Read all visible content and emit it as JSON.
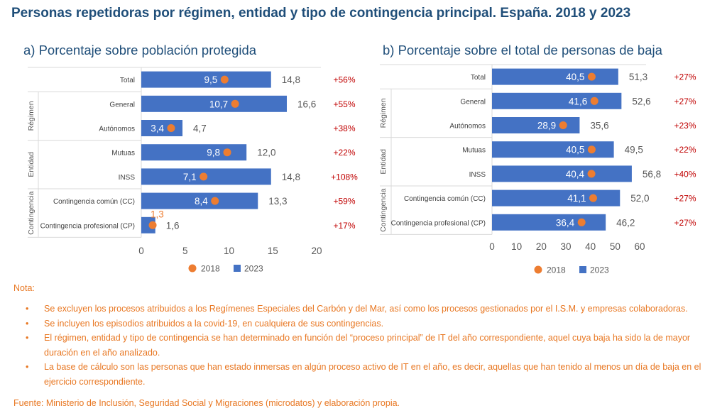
{
  "title": "Personas repetidoras por régimen, entidad y tipo de contingencia principal. España. 2018 y 2023",
  "legend": {
    "series_2018": "2018",
    "series_2023": "2023"
  },
  "colors": {
    "bar_2023": "#4472c4",
    "dot_2018": "#ed7d31",
    "pct_text": "#c00000",
    "note_text": "#e87722",
    "title": "#1f4e79"
  },
  "groups": [
    {
      "label": "",
      "categories": [
        "Total"
      ]
    },
    {
      "label": "Régimen",
      "categories": [
        "General",
        "Autónomos"
      ]
    },
    {
      "label": "Entidad",
      "categories": [
        "Mutuas",
        "INSS"
      ]
    },
    {
      "label": "Contingencia",
      "categories": [
        "Contingencia común (CC)",
        "Contingencia profesional (CP)"
      ]
    }
  ],
  "chart_data": [
    {
      "type": "bar",
      "orientation": "horizontal",
      "title": "a) Porcentaje sobre población protegida",
      "categories": [
        "Total",
        "General",
        "Autónomos",
        "Mutuas",
        "INSS",
        "Contingencia común (CC)",
        "Contingencia profesional (CP)"
      ],
      "series": [
        {
          "name": "2023",
          "values": [
            14.8,
            16.6,
            4.7,
            12.0,
            14.8,
            13.3,
            1.6
          ],
          "labels": [
            "14,8",
            "16,6",
            "4,7",
            "12,0",
            "14,8",
            "13,3",
            "1,6"
          ]
        },
        {
          "name": "2018",
          "values": [
            9.5,
            10.7,
            3.4,
            9.8,
            7.1,
            8.4,
            1.3
          ],
          "labels": [
            "9,5",
            "10,7",
            "3,4",
            "9,8",
            "7,1",
            "8,4",
            "1,3"
          ]
        }
      ],
      "changes": [
        "+56%",
        "+55%",
        "+38%",
        "+22%",
        "+108%",
        "+59%",
        "+17%"
      ],
      "xlim": [
        0,
        20
      ],
      "xticks": [
        0,
        5,
        10,
        15,
        20
      ],
      "legend_position": "bottom"
    },
    {
      "type": "bar",
      "orientation": "horizontal",
      "title": "b) Porcentaje sobre el total de personas de baja",
      "categories": [
        "Total",
        "General",
        "Autónomos",
        "Mutuas",
        "INSS",
        "Contingencia común (CC)",
        "Contingencia profesional (CP)"
      ],
      "series": [
        {
          "name": "2023",
          "values": [
            51.3,
            52.6,
            35.6,
            49.5,
            56.8,
            52.0,
            46.2
          ],
          "labels": [
            "51,3",
            "52,6",
            "35,6",
            "49,5",
            "56,8",
            "52,0",
            "46,2"
          ]
        },
        {
          "name": "2018",
          "values": [
            40.5,
            41.6,
            28.9,
            40.5,
            40.4,
            41.1,
            36.4
          ],
          "labels": [
            "40,5",
            "41,6",
            "28,9",
            "40,5",
            "40,4",
            "41,1",
            "36,4"
          ]
        }
      ],
      "changes": [
        "+27%",
        "+27%",
        "+23%",
        "+22%",
        "+40%",
        "+27%",
        "+27%"
      ],
      "xlim": [
        0,
        60
      ],
      "xticks": [
        0,
        10,
        20,
        30,
        40,
        50,
        60
      ],
      "legend_position": "bottom"
    }
  ],
  "notes": {
    "label": "Nota:",
    "bullet": "•",
    "items": [
      "Se excluyen los procesos atribuidos a los Regímenes Especiales del Carbón y del Mar, así como los procesos gestionados por el I.S.M. y empresas colaboradoras.",
      "Se incluyen los episodios atribuidos a la covid-19, en cualquiera de sus contingencias.",
      "El régimen, entidad y tipo de contingencia se han determinado en función del “proceso principal” de IT del año correspondiente, aquel cuya baja ha sido la de mayor duración en el año analizado.",
      "La base de cálculo son las personas que han estado inmersas en algún proceso activo de IT en el año, es decir, aquellas que han tenido al menos un día de baja en el ejercicio correspondiente."
    ]
  },
  "source": "Fuente: Ministerio de Inclusión, Seguridad Social y Migraciones (microdatos) y elaboración propia."
}
